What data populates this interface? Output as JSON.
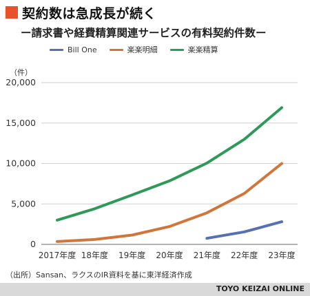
{
  "header": {
    "title": "契約数は急成長が続く",
    "subtitle": "ー請求書や経費精算関連サービスの有料契約件数ー"
  },
  "colors": {
    "accent": "#e8512a",
    "bill_one": "#5670b2",
    "rakuraku_meisai": "#d0763a",
    "rakuraku_seisan": "#2f9a57",
    "footer_bg": "#d9d9d9"
  },
  "chart_data": {
    "type": "line",
    "ylabel": "（件）",
    "ylim": [
      0,
      20000
    ],
    "yticks": [
      "0",
      "5,000",
      "10,000",
      "15,000",
      "20,000"
    ],
    "ytick_values": [
      0,
      5000,
      10000,
      15000,
      20000
    ],
    "categories": [
      "2017年度",
      "18年度",
      "19年度",
      "20年度",
      "21年度",
      "22年度",
      "23年度"
    ],
    "grid": "horizontal",
    "legend_position": "top-left",
    "series": [
      {
        "name": "Bill One",
        "color": "#5670b2",
        "values": [
          null,
          null,
          null,
          null,
          750,
          1550,
          2800
        ]
      },
      {
        "name": "楽楽明細",
        "color": "#d0763a",
        "values": [
          350,
          600,
          1150,
          2200,
          3900,
          6300,
          10000
        ]
      },
      {
        "name": "楽楽精算",
        "color": "#2f9a57",
        "values": [
          3000,
          4400,
          6100,
          7850,
          10050,
          13000,
          16900
        ]
      }
    ]
  },
  "footer": {
    "source": "（出所）Sansan、ラクスのIR資料を基に東洋経済作成",
    "brand": "TOYO KEIZAI ONLINE"
  }
}
